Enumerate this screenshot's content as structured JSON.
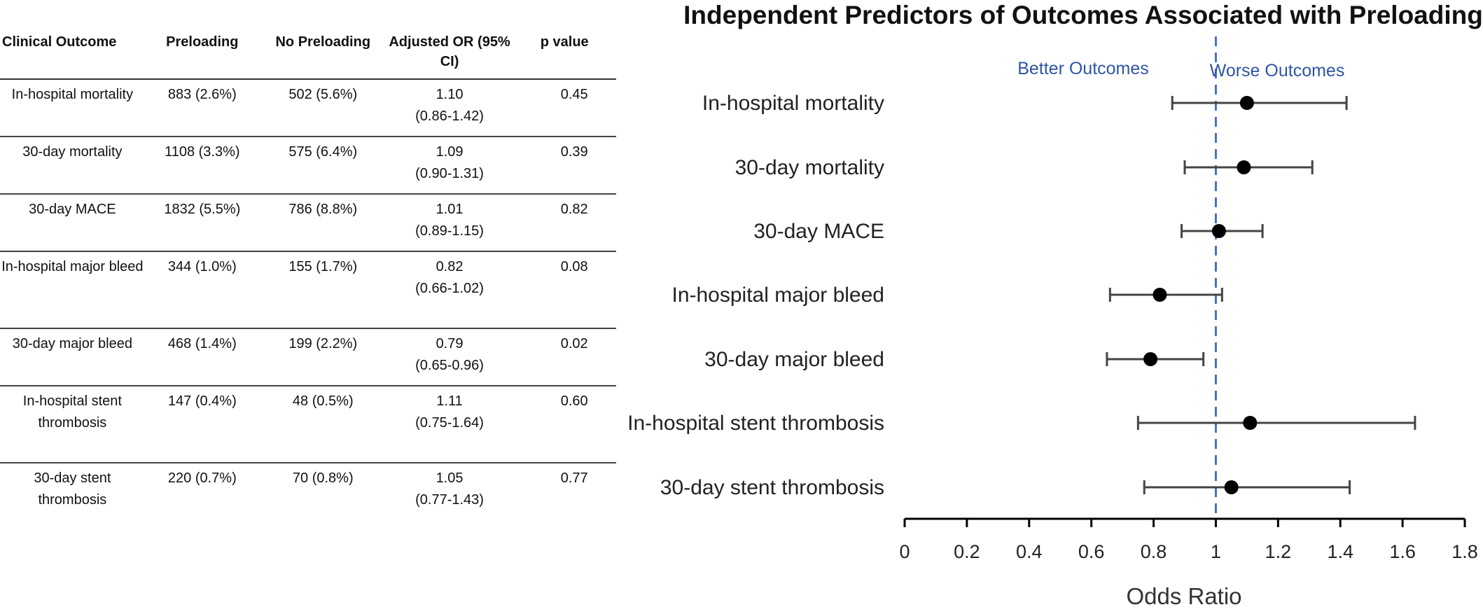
{
  "table": {
    "headers": [
      "Clinical Outcome",
      "Preloading",
      "No Preloading",
      "Adjusted OR (95% CI)",
      "p value"
    ],
    "rows": [
      {
        "outcome": "In-hospital mortality",
        "preloading": "883 (2.6%)",
        "no_preloading": "502 (5.6%)",
        "or": "1.10",
        "ci": "(0.86-1.42)",
        "p": "0.45"
      },
      {
        "outcome": "30-day mortality",
        "preloading": "1108 (3.3%)",
        "no_preloading": "575 (6.4%)",
        "or": "1.09",
        "ci": "(0.90-1.31)",
        "p": "0.39"
      },
      {
        "outcome": "30-day MACE",
        "preloading": "1832 (5.5%)",
        "no_preloading": "786 (8.8%)",
        "or": "1.01",
        "ci": "(0.89-1.15)",
        "p": "0.82"
      },
      {
        "outcome": "In-hospital major bleed",
        "preloading": "344 (1.0%)",
        "no_preloading": "155 (1.7%)",
        "or": "0.82",
        "ci": "(0.66-1.02)",
        "p": "0.08"
      },
      {
        "outcome": "30-day major bleed",
        "preloading": "468 (1.4%)",
        "no_preloading": "199 (2.2%)",
        "or": "0.79",
        "ci": "(0.65-0.96)",
        "p": "0.02"
      },
      {
        "outcome": "In-hospital stent thrombosis",
        "preloading": "147 (0.4%)",
        "no_preloading": "48 (0.5%)",
        "or": "1.11",
        "ci": "(0.75-1.64)",
        "p": "0.60"
      },
      {
        "outcome": "30-day stent thrombosis",
        "preloading": "220 (0.7%)",
        "no_preloading": "70 (0.8%)",
        "or": "1.05",
        "ci": "(0.77-1.43)",
        "p": "0.77"
      }
    ]
  },
  "chart_data": {
    "type": "forest",
    "title": "Independent Predictors of Outcomes Associated with Preloading",
    "xlabel": "Odds Ratio",
    "xlim": [
      0,
      1.8
    ],
    "xticks": [
      0,
      0.2,
      0.4,
      0.6,
      0.8,
      1,
      1.2,
      1.4,
      1.6,
      1.8
    ],
    "reference_line": 1,
    "annotations": {
      "left": "Better Outcomes",
      "right": "Worse Outcomes"
    },
    "categories": [
      "In-hospital mortality",
      "30-day mortality",
      "30-day MACE",
      "In-hospital major bleed",
      "30-day major bleed",
      "In-hospital stent thrombosis",
      "30-day stent thrombosis"
    ],
    "values": [
      1.1,
      1.09,
      1.01,
      0.82,
      0.79,
      1.11,
      1.05
    ],
    "ci_low": [
      0.86,
      0.9,
      0.89,
      0.66,
      0.65,
      0.75,
      0.77
    ],
    "ci_high": [
      1.42,
      1.31,
      1.15,
      1.02,
      0.96,
      1.64,
      1.43
    ],
    "colors": {
      "marker": "#000000",
      "whisker": "#444444",
      "reference": "#4472c4",
      "annotation": "#2f55a4"
    }
  }
}
